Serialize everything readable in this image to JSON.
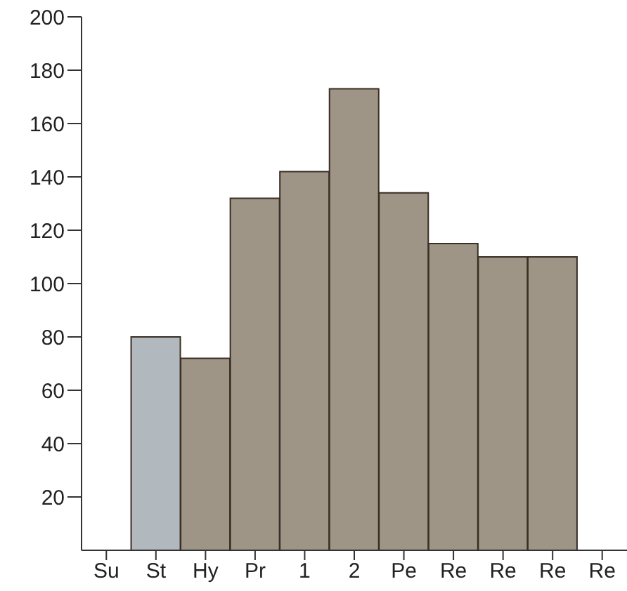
{
  "chart_data": {
    "type": "bar",
    "categories": [
      "Su",
      "St",
      "Hy",
      "Pr",
      "1",
      "2",
      "Pe",
      "Re",
      "Re",
      "Re",
      "Re"
    ],
    "values": [
      null,
      80,
      72,
      132,
      142,
      173,
      134,
      115,
      110,
      110,
      null
    ],
    "colors": [
      "#8e8272",
      "#a3abb3",
      "#8e8272",
      "#8e8272",
      "#8e8272",
      "#8e8272",
      "#8e8272",
      "#8e8272",
      "#8e8272",
      "#8e8272",
      "#8e8272"
    ],
    "ylim": [
      0,
      200
    ],
    "yticks": [
      20,
      40,
      60,
      80,
      100,
      120,
      140,
      160,
      180,
      200
    ],
    "grid": false,
    "legend": false
  }
}
